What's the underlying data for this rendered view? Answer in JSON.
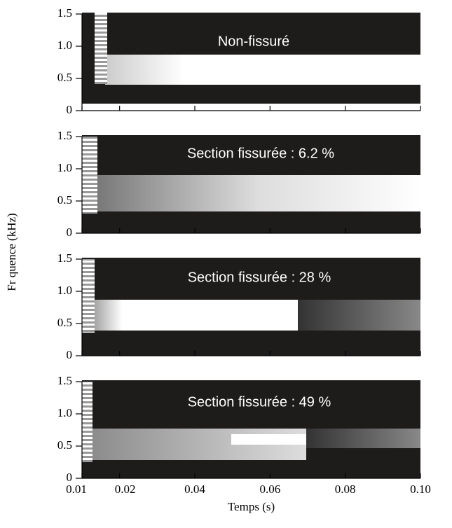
{
  "chart_data": [
    {
      "type": "spectrogram",
      "annotation": "Non-fissuré",
      "ylabel": "Fr quence (kHz)",
      "xlim": [
        0.01,
        0.1
      ],
      "xticks": [
        0.01,
        0.02,
        0.04,
        0.06,
        0.08,
        {
          "value": 0.1,
          "label": "0.10"
        }
      ],
      "ylim": [
        0,
        1.5
      ],
      "yticks": [
        0,
        0.5,
        {
          "value": 1,
          "label": "1.0"
        },
        1.5
      ]
    },
    {
      "type": "spectrogram",
      "annotation": "Section fissurée :  6.2 %",
      "xlim": [
        0.01,
        0.1
      ],
      "xticks": [
        0.01,
        0.02,
        0.04,
        0.06,
        0.08,
        {
          "value": 0.1,
          "label": "0.10"
        }
      ],
      "ylim": [
        0,
        1.5
      ],
      "yticks": [
        0,
        0.5,
        {
          "value": 1,
          "label": "1.0"
        },
        1.5
      ]
    },
    {
      "type": "spectrogram",
      "annotation": "Section fissurée :  28 %",
      "xlim": [
        0.01,
        0.1
      ],
      "xticks": [
        0.01,
        0.02,
        0.04,
        0.06,
        0.08,
        {
          "value": 0.1,
          "label": "0.10"
        }
      ],
      "ylim": [
        0,
        1.5
      ],
      "yticks": [
        0,
        0.5,
        {
          "value": 1,
          "label": "1.0"
        },
        1.5
      ]
    },
    {
      "type": "spectrogram",
      "annotation": "Section fissurée :  49 %",
      "xlabel": "Temps (s)",
      "xlim": [
        0.01,
        0.1
      ],
      "xticks": [
        0.01,
        0.02,
        0.04,
        0.06,
        0.08,
        {
          "value": 0.1,
          "label": "0.10"
        }
      ],
      "ylim": [
        0,
        1.5
      ],
      "yticks": [
        0,
        0.5,
        {
          "value": 1,
          "label": "1.0"
        },
        1.5
      ]
    }
  ]
}
